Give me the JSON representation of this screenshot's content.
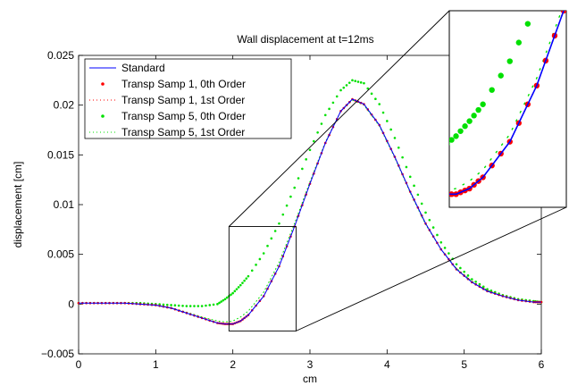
{
  "chart_data": {
    "type": "line",
    "title": "Wall displacement at t=12ms",
    "xlabel": "cm",
    "ylabel": "displacement [cm]",
    "xlim": [
      0,
      6
    ],
    "ylim": [
      -0.005,
      0.025
    ],
    "xticks": [
      0,
      1,
      2,
      3,
      4,
      5,
      6
    ],
    "xtick_labels": [
      "0",
      "1",
      "2",
      "3",
      "4",
      "5",
      "6"
    ],
    "yticks": [
      -0.005,
      0,
      0.005,
      0.01,
      0.015,
      0.02,
      0.025
    ],
    "ytick_labels": [
      "−0.005",
      "0",
      "0.005",
      "0.01",
      "0.015",
      "0.02",
      "0.025"
    ],
    "grid": false,
    "legend_position": "top-left",
    "x": [
      0,
      0.2,
      0.4,
      0.6,
      0.8,
      1.0,
      1.2,
      1.4,
      1.6,
      1.8,
      1.9,
      2.0,
      2.1,
      2.2,
      2.4,
      2.6,
      2.8,
      3.0,
      3.2,
      3.4,
      3.55,
      3.7,
      3.9,
      4.1,
      4.3,
      4.5,
      4.7,
      4.9,
      5.1,
      5.3,
      5.5,
      5.7,
      5.9,
      6.0
    ],
    "series": [
      {
        "name": "Standard",
        "style": "solid-line",
        "color": "#0000ff",
        "values": [
          0.0001,
          0.0001,
          0.0001,
          0.0001,
          0.0,
          -0.0001,
          -0.0004,
          -0.0009,
          -0.0014,
          -0.0019,
          -0.002,
          -0.002,
          -0.0017,
          -0.0011,
          0.0008,
          0.0038,
          0.0078,
          0.0121,
          0.0162,
          0.0194,
          0.0206,
          0.0201,
          0.018,
          0.0148,
          0.0113,
          0.0081,
          0.0055,
          0.0035,
          0.0022,
          0.0013,
          0.0008,
          0.0004,
          0.0002,
          0.0002
        ]
      },
      {
        "name": "Transp Samp 1, 0th Order",
        "style": "dots",
        "color": "#ff0000",
        "values": [
          0.0001,
          0.0001,
          0.0001,
          0.0001,
          0.0,
          -0.0001,
          -0.0004,
          -0.0009,
          -0.0014,
          -0.0019,
          -0.002,
          -0.002,
          -0.0017,
          -0.0011,
          0.0008,
          0.0038,
          0.0078,
          0.0121,
          0.0162,
          0.0194,
          0.0206,
          0.0201,
          0.018,
          0.0148,
          0.0113,
          0.0081,
          0.0055,
          0.0035,
          0.0022,
          0.0013,
          0.0008,
          0.0004,
          0.0002,
          0.0002
        ]
      },
      {
        "name": "Transp Samp 1, 1st Order",
        "style": "dotted",
        "color": "#ff0000",
        "values": [
          0.0001,
          0.0001,
          0.0001,
          0.0001,
          0.0,
          -0.0001,
          -0.0004,
          -0.0009,
          -0.0014,
          -0.0019,
          -0.002,
          -0.002,
          -0.0017,
          -0.0011,
          0.0008,
          0.0038,
          0.0078,
          0.0121,
          0.0162,
          0.0194,
          0.0206,
          0.0201,
          0.018,
          0.0148,
          0.0113,
          0.0081,
          0.0055,
          0.0035,
          0.0022,
          0.0013,
          0.0008,
          0.0004,
          0.0002,
          0.0002
        ]
      },
      {
        "name": "Transp Samp 5, 0th Order",
        "style": "dots",
        "color": "#00e000",
        "values": [
          0.0001,
          0.0001,
          0.0001,
          0.0001,
          0.0001,
          0.0,
          -0.0001,
          -0.0002,
          -0.0002,
          0.0,
          0.0005,
          0.0011,
          0.0019,
          0.0028,
          0.0051,
          0.0081,
          0.0117,
          0.0155,
          0.019,
          0.0215,
          0.0225,
          0.0222,
          0.0201,
          0.0167,
          0.0128,
          0.0092,
          0.0062,
          0.004,
          0.0025,
          0.0015,
          0.0009,
          0.0005,
          0.0003,
          0.0002
        ]
      },
      {
        "name": "Transp Samp 5, 1st Order",
        "style": "dotted",
        "color": "#00e000",
        "values": [
          0.0001,
          0.0001,
          0.0001,
          0.0001,
          0.0,
          -0.0001,
          -0.0004,
          -0.0008,
          -0.0013,
          -0.0017,
          -0.0018,
          -0.0017,
          -0.0013,
          -0.0007,
          0.0012,
          0.0042,
          0.0081,
          0.0123,
          0.0163,
          0.0194,
          0.0205,
          0.02,
          0.0179,
          0.0147,
          0.0112,
          0.008,
          0.0055,
          0.0036,
          0.0023,
          0.0014,
          0.0008,
          0.0005,
          0.0003,
          0.0002
        ]
      }
    ],
    "zoom_region": {
      "xlim": [
        1.95,
        2.82
      ],
      "ylim": [
        -0.0027,
        0.0078
      ]
    },
    "inset": {
      "xlim": [
        1.95,
        2.82
      ],
      "ylim": [
        -0.0027,
        0.0078
      ],
      "axes": "none"
    }
  }
}
